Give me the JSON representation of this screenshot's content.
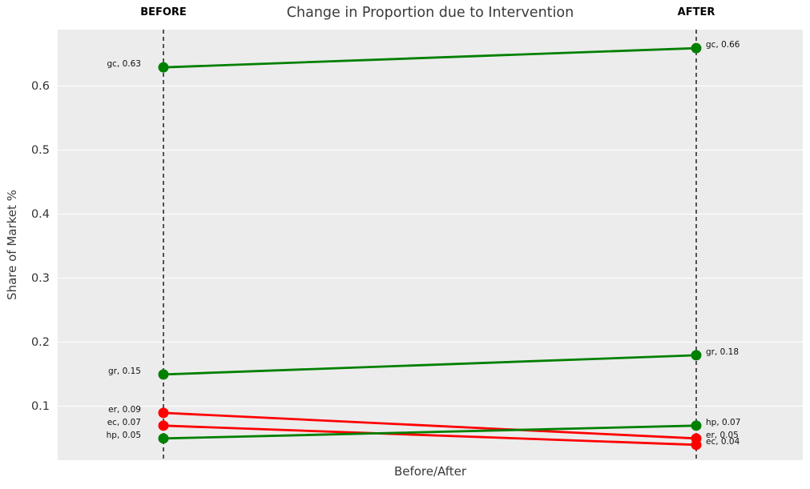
{
  "chart_data": {
    "type": "line",
    "subtype": "slopegraph",
    "title": "Change in Proportion due to Intervention",
    "xlabel": "Before/After",
    "ylabel": "Share of Market %",
    "column_labels": [
      "BEFORE",
      "AFTER"
    ],
    "categories": [
      "BEFORE",
      "AFTER"
    ],
    "yticks": [
      0.1,
      0.2,
      0.3,
      0.4,
      0.5,
      0.6
    ],
    "ylim": [
      0.016,
      0.689
    ],
    "grid": true,
    "legend": "none",
    "series": [
      {
        "name": "gc",
        "values": [
          0.63,
          0.66
        ],
        "color": "#008000",
        "before_label": "gc, 0.63",
        "after_label": "gc, 0.66"
      },
      {
        "name": "gr",
        "values": [
          0.15,
          0.18
        ],
        "color": "#008000",
        "before_label": "gr, 0.15",
        "after_label": "gr, 0.18"
      },
      {
        "name": "er",
        "values": [
          0.09,
          0.05
        ],
        "color": "#ff0000",
        "before_label": "er, 0.09",
        "after_label": "er, 0.05"
      },
      {
        "name": "ec",
        "values": [
          0.07,
          0.04
        ],
        "color": "#ff0000",
        "before_label": "ec, 0.07",
        "after_label": "ec, 0.04"
      },
      {
        "name": "hp",
        "values": [
          0.05,
          0.07
        ],
        "color": "#008000",
        "before_label": "hp, 0.05",
        "after_label": "hp, 0.07"
      }
    ]
  },
  "style": {
    "plot_background": "#ececec",
    "grid_color": "#ffffff",
    "column_axis_color": "#000000",
    "increase_color": "#008000",
    "decrease_color": "#ff0000"
  }
}
